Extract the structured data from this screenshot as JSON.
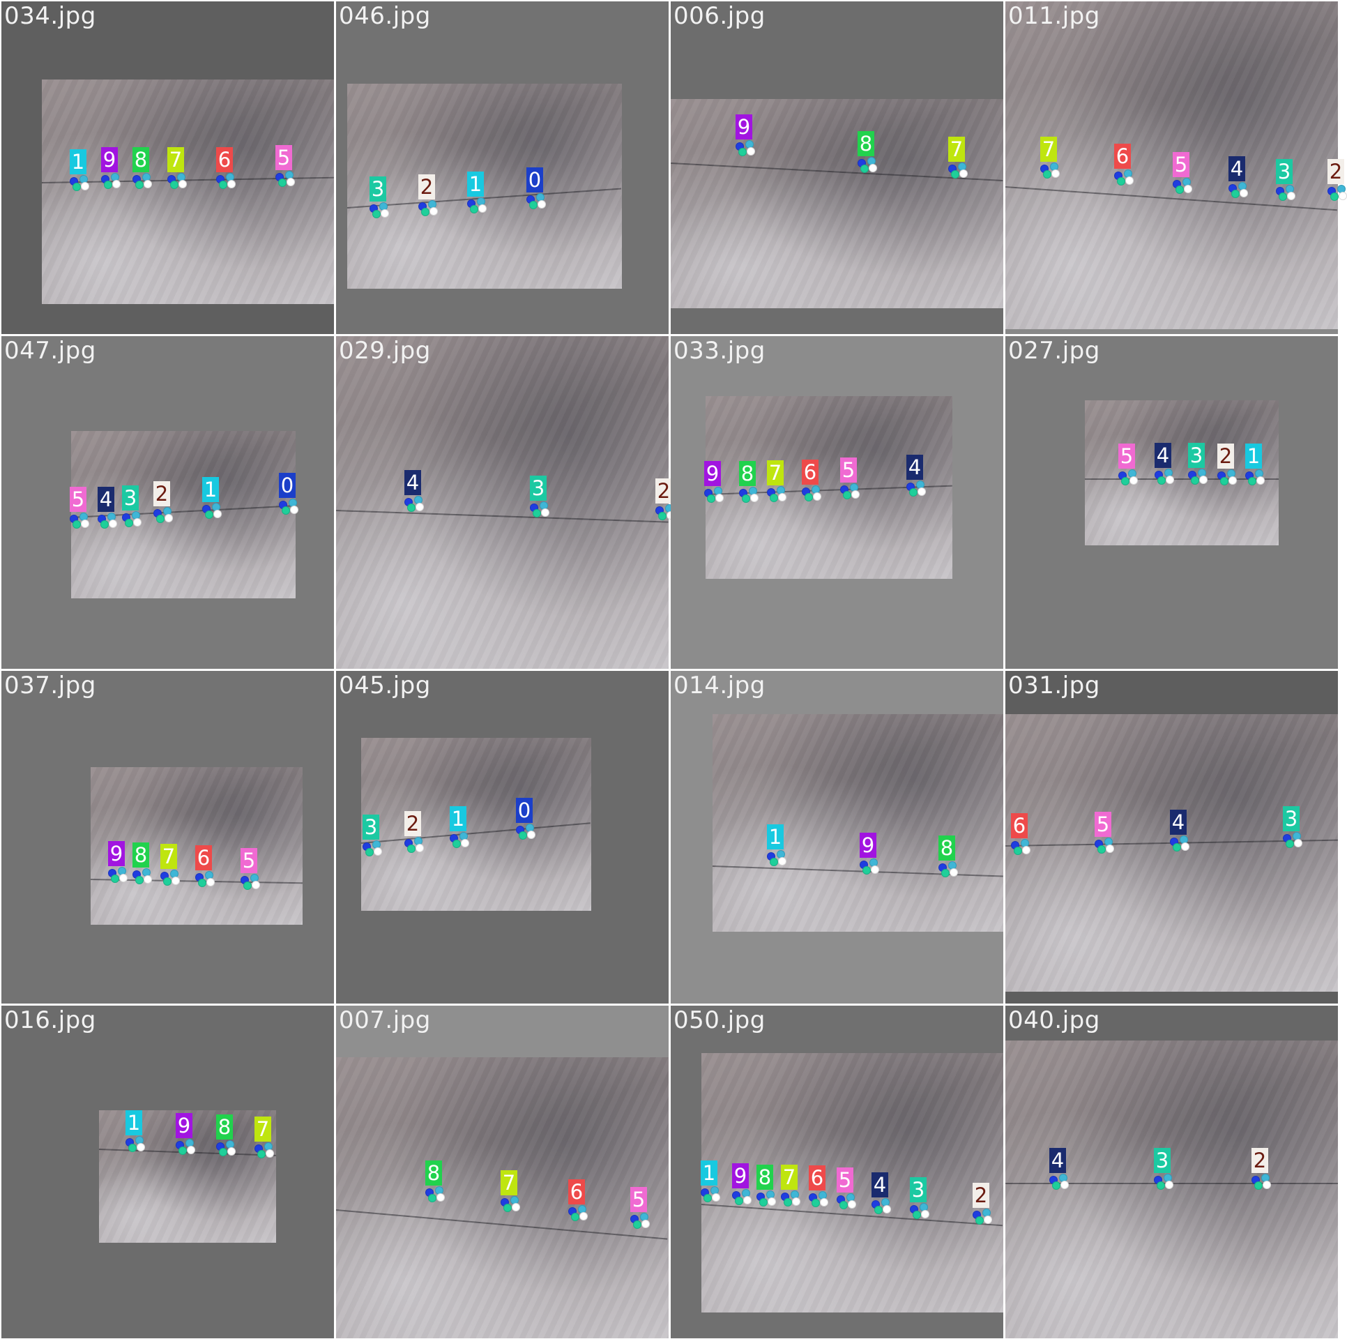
{
  "tag_colors": {
    "0": {
      "bg": "#1b3fc9",
      "fg": "#ffffff"
    },
    "1": {
      "bg": "#18c9e0",
      "fg": "#ffffff"
    },
    "2": {
      "bg": "#f3efea",
      "fg": "#6b1b10"
    },
    "3": {
      "bg": "#1cc9a2",
      "fg": "#ffffff"
    },
    "4": {
      "bg": "#1a2b6e",
      "fg": "#ffffff"
    },
    "5": {
      "bg": "#f06ad2",
      "fg": "#ffffff"
    },
    "6": {
      "bg": "#ee4a4a",
      "fg": "#ffffff"
    },
    "7": {
      "bg": "#bfe50f",
      "fg": "#ffffff"
    },
    "8": {
      "bg": "#21d24d",
      "fg": "#ffffff"
    },
    "9": {
      "bg": "#a114e0",
      "fg": "#ffffff"
    }
  },
  "tiles": [
    {
      "label": "034.jpg",
      "bg": "#5f5f5f",
      "markers": [
        "1",
        "9",
        "8",
        "7",
        "6",
        "5"
      ]
    },
    {
      "label": "046.jpg",
      "bg": "#727272",
      "markers": [
        "3",
        "2",
        "1",
        "0"
      ]
    },
    {
      "label": "006.jpg",
      "bg": "#6d6d6d",
      "markers": [
        "9",
        "8",
        "7"
      ]
    },
    {
      "label": "011.jpg",
      "bg": "#888888",
      "markers": [
        "7",
        "6",
        "5",
        "4",
        "3",
        "2"
      ]
    },
    {
      "label": "047.jpg",
      "bg": "#7a7a7a",
      "markers": [
        "5",
        "4",
        "3",
        "2",
        "1",
        "0"
      ]
    },
    {
      "label": "029.jpg",
      "bg": "#8a8a8a",
      "markers": [
        "4",
        "3",
        "2"
      ]
    },
    {
      "label": "033.jpg",
      "bg": "#8c8c8c",
      "markers": [
        "9",
        "8",
        "7",
        "6",
        "5",
        "4"
      ]
    },
    {
      "label": "027.jpg",
      "bg": "#7b7b7b",
      "markers": [
        "5",
        "4",
        "3",
        "2",
        "1"
      ]
    },
    {
      "label": "037.jpg",
      "bg": "#737373",
      "markers": [
        "9",
        "8",
        "7",
        "6",
        "5"
      ]
    },
    {
      "label": "045.jpg",
      "bg": "#6b6b6b",
      "markers": [
        "3",
        "2",
        "1",
        "0"
      ]
    },
    {
      "label": "014.jpg",
      "bg": "#8e8e8e",
      "markers": [
        "1",
        "9",
        "8"
      ]
    },
    {
      "label": "031.jpg",
      "bg": "#5e5e5e",
      "markers": [
        "6",
        "5",
        "4",
        "3"
      ]
    },
    {
      "label": "016.jpg",
      "bg": "#6c6c6c",
      "markers": [
        "1",
        "9",
        "8",
        "7"
      ]
    },
    {
      "label": "007.jpg",
      "bg": "#8f8f8f",
      "markers": [
        "8",
        "7",
        "6",
        "5"
      ]
    },
    {
      "label": "050.jpg",
      "bg": "#707070",
      "markers": [
        "1",
        "9",
        "8",
        "7",
        "6",
        "5",
        "4",
        "3",
        "2"
      ]
    },
    {
      "label": "040.jpg",
      "bg": "#676767",
      "markers": [
        "4",
        "3",
        "2"
      ]
    }
  ]
}
